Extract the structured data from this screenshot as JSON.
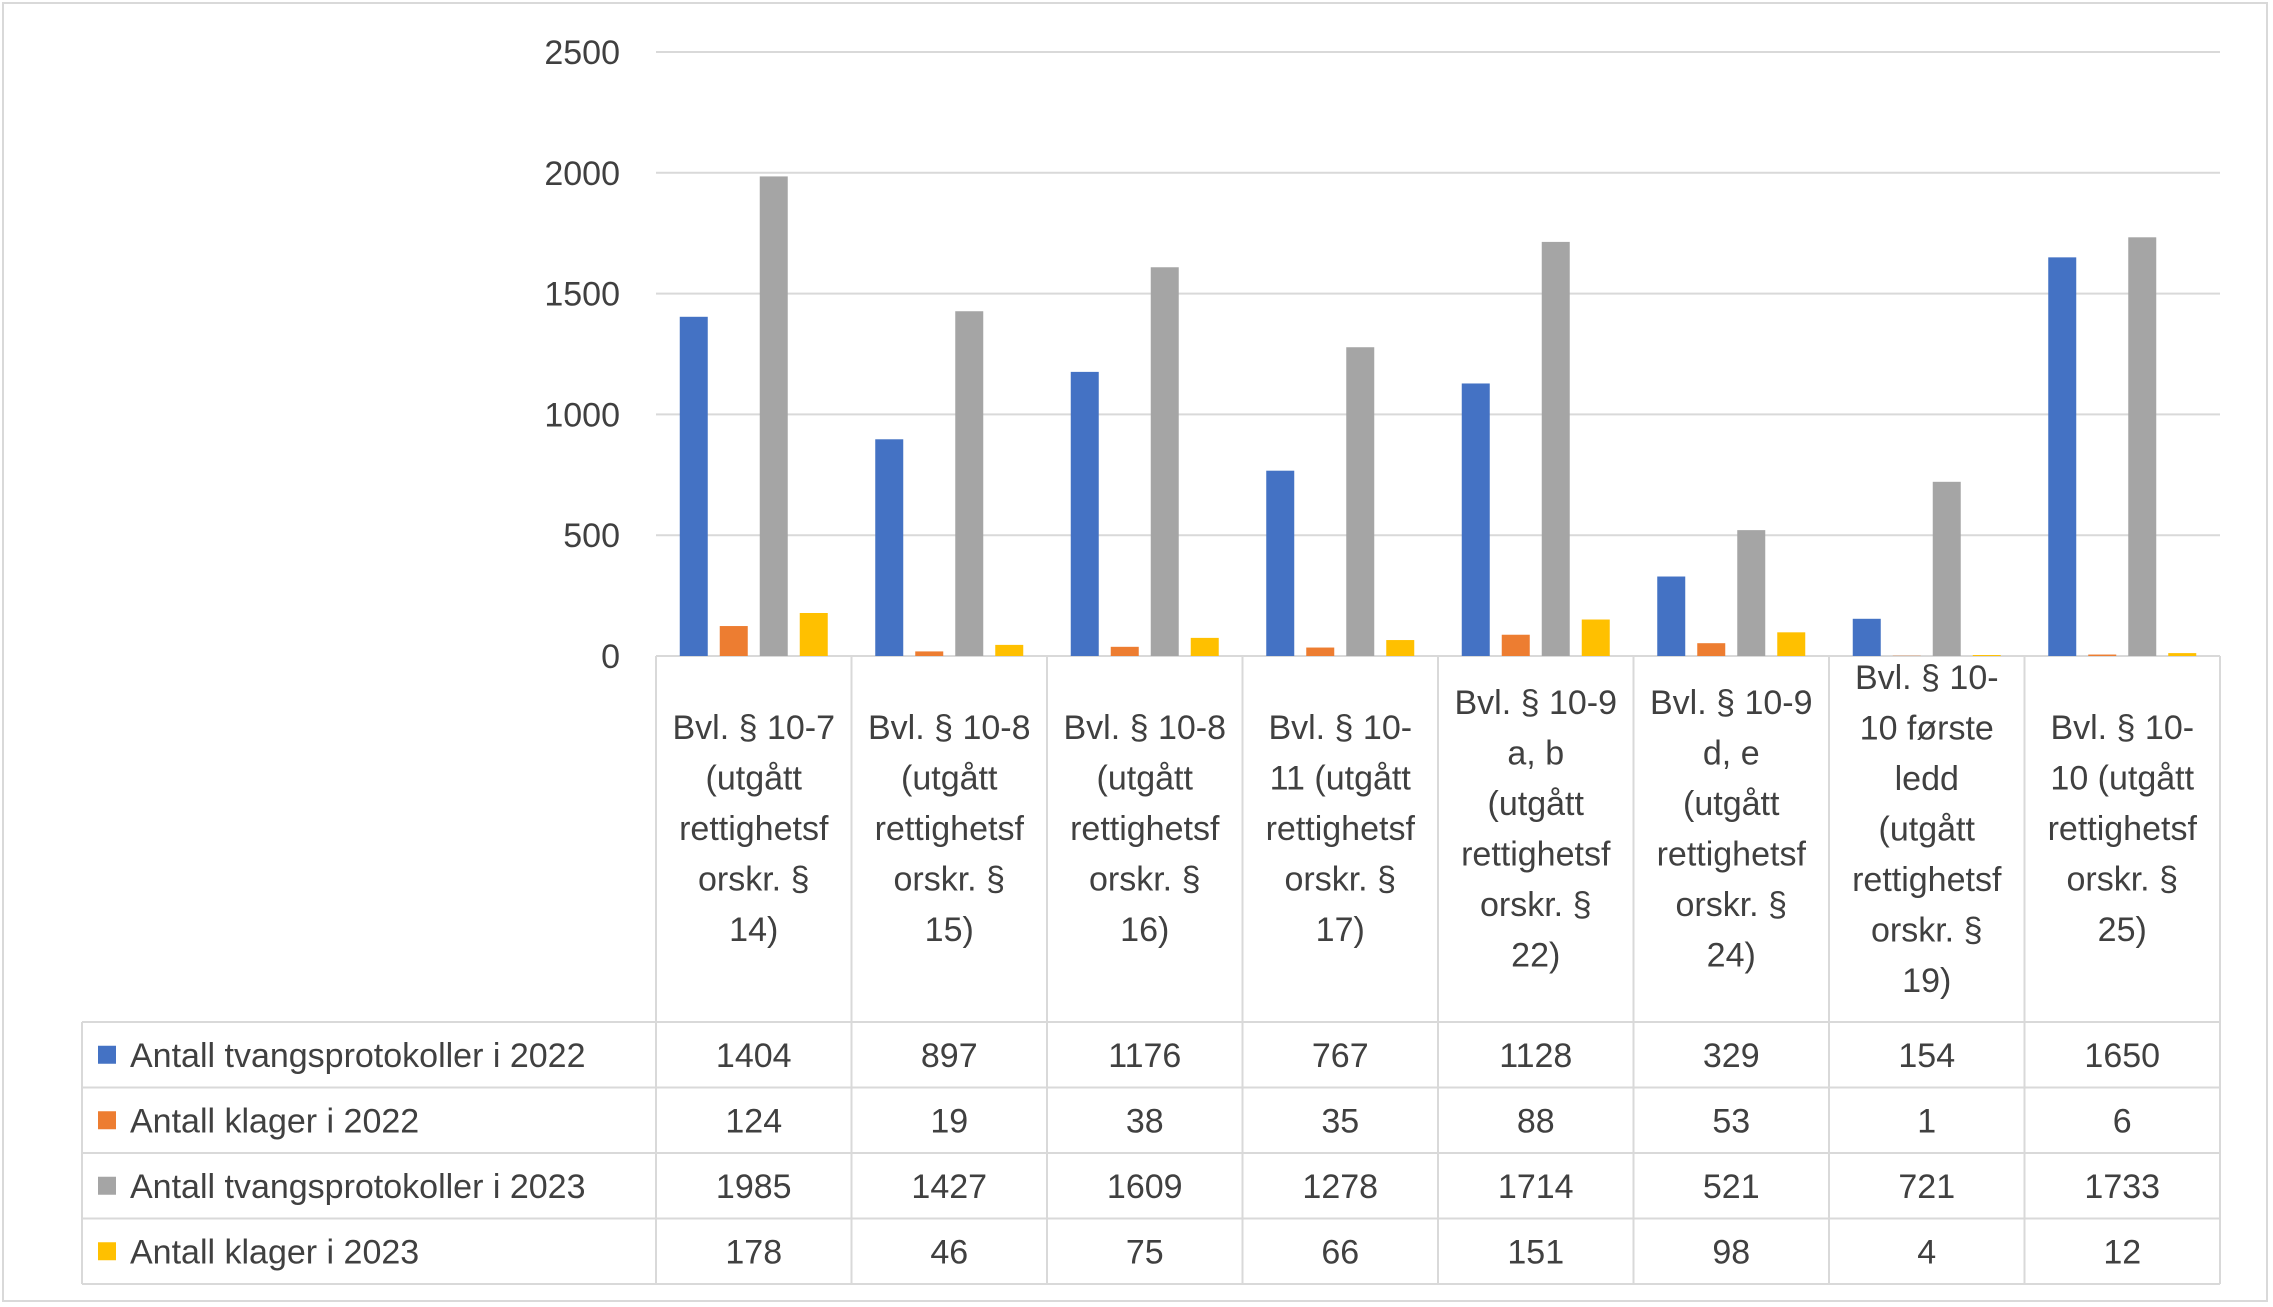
{
  "chart_data": {
    "type": "bar",
    "title": "",
    "xlabel": "",
    "ylabel": "",
    "ylim": [
      0,
      2500
    ],
    "yticks": [
      0,
      500,
      1000,
      1500,
      2000,
      2500
    ],
    "grid": true,
    "legend": "data-table-left",
    "categories": [
      [
        "Bvl. § 10-7",
        "(utgått",
        "rettighetsf",
        "orskr. §",
        "14)"
      ],
      [
        "Bvl. § 10-8",
        "(utgått",
        "rettighetsf",
        "orskr. §",
        "15)"
      ],
      [
        "Bvl. § 10-8",
        "(utgått",
        "rettighetsf",
        "orskr. §",
        "16)"
      ],
      [
        "Bvl. § 10-",
        "11 (utgått",
        "rettighetsf",
        "orskr. §",
        "17)"
      ],
      [
        "Bvl. § 10-9",
        "a, b",
        "(utgått",
        "rettighetsf",
        "orskr. §",
        "22)"
      ],
      [
        "Bvl. § 10-9",
        "d, e",
        "(utgått",
        "rettighetsf",
        "orskr. §",
        "24)"
      ],
      [
        "Bvl. § 10-",
        "10 første",
        "ledd",
        "(utgått",
        "rettighetsf",
        "orskr. §",
        "19)"
      ],
      [
        "Bvl. § 10-",
        "10 (utgått",
        "rettighetsf",
        "orskr. §",
        "25)"
      ]
    ],
    "series": [
      {
        "name": "Antall tvangsprotokoller i 2022",
        "color": "#4472c4",
        "values": [
          1404,
          897,
          1176,
          767,
          1128,
          329,
          154,
          1650
        ]
      },
      {
        "name": "Antall klager i 2022",
        "color": "#ed7d31",
        "values": [
          124,
          19,
          38,
          35,
          88,
          53,
          1,
          6
        ]
      },
      {
        "name": "Antall tvangsprotokoller i 2023",
        "color": "#a5a5a5",
        "values": [
          1985,
          1427,
          1609,
          1278,
          1714,
          521,
          721,
          1733
        ]
      },
      {
        "name": "Antall klager i 2023",
        "color": "#ffc000",
        "values": [
          178,
          46,
          75,
          66,
          151,
          98,
          4,
          12
        ]
      }
    ]
  }
}
